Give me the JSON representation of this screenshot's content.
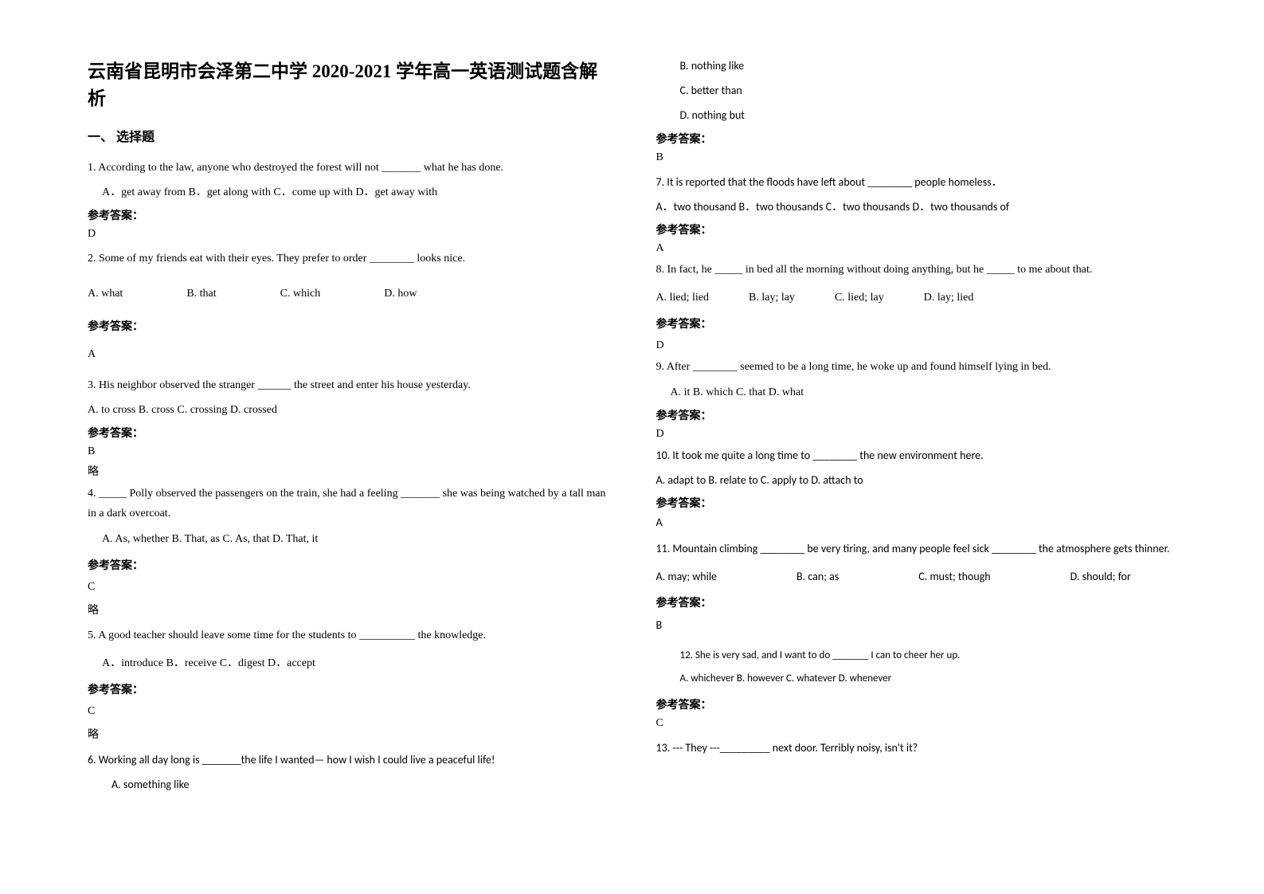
{
  "title": "云南省昆明市会泽第二中学 2020-2021 学年高一英语测试题含解析",
  "section": "一、 选择题",
  "answer_label": "参考答案：",
  "omitted": "略",
  "q1": {
    "text": "1. According to the law, anyone who destroyed the forest will not _______ what he has done.",
    "opts": "A．get away from   B．get along with   C．come up with         D．get away with",
    "ans": "D"
  },
  "q2": {
    "text": "2. Some of my friends eat with their eyes. They prefer to order ________ looks nice.",
    "optA": "A.  what",
    "optB": "B.  that",
    "optC": "C.  which",
    "optD": "D.  how",
    "ans": "A"
  },
  "q3": {
    "text": "3.   His neighbor observed the stranger ______ the street and enter his house yesterday.",
    "opts": " A. to cross    B. cross    C. crossing     D. crossed",
    "ans": "B"
  },
  "q4": {
    "text": "4. _____ Polly observed the passengers on the train, she had a feeling _______ she was being watched by a tall man in a dark overcoat.",
    "opts": "A. As, whether    B. That, as     C. As, that          D. That, it",
    "ans": "C"
  },
  "q5": {
    "text": "5. A good teacher should leave some time for the students to __________ the knowledge.",
    "opts": "A．introduce     B．receive      C．digest       D．accept",
    "ans": "C"
  },
  "q6": {
    "text": "6. Working all day long is _______the life I wanted— how I wish I could live a peaceful life!",
    "optA": "A. something like",
    "optB": "B. nothing like",
    "optC": "C. better than",
    "optD": "D. nothing but",
    "ans": "B"
  },
  "q7": {
    "text": "7. It is reported that the floods have left about ________ people homeless．",
    "opts": "A．two thousand    B．two thousands    C．two thousands    D．two thousands of",
    "ans": "A"
  },
  "q8": {
    "text": "8. In fact, he _____ in bed all the morning without doing anything, but he _____ to me about that.",
    "optA": "A. lied; lied",
    "optB": "B. lay; lay",
    "optC": "C. lied; lay",
    "optD": "D. lay; lied",
    "ans": "D"
  },
  "q9": {
    "text": "9. After ________ seemed to be a long time, he woke up and found himself lying in bed.",
    "opts": "A. it              B. which          C. that            D. what",
    "ans": "D"
  },
  "q10": {
    "text": "10. It took me quite a long time to ________ the new environment here.",
    "opts": "A. adapt to   B. relate to   C. apply to   D. attach to",
    "ans": "A"
  },
  "q11": {
    "text": "11. Mountain climbing ________ be very tiring, and many people feel sick ________ the atmosphere gets thinner.",
    "optA": "A. may; while",
    "optB": "B. can; as",
    "optC": "C. must; though",
    "optD": "D. should; for",
    "ans": "B"
  },
  "q12": {
    "text": "12.  She is very sad, and I want to do _______ I can to cheer her up.",
    "opts": "A. whichever    B. however     C. whatever    D. whenever",
    "ans": "C"
  },
  "q13": {
    "text": "13. --- They ---_________ next door. Terribly noisy, isn't it?"
  }
}
